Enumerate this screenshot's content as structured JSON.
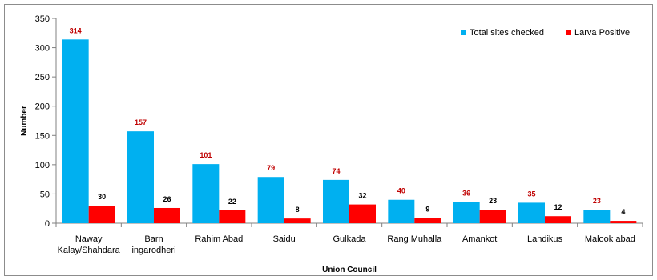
{
  "chart_data": {
    "type": "bar",
    "title": "",
    "xlabel": "Union Council",
    "ylabel": "Number",
    "ylim": [
      0,
      350
    ],
    "yticks": [
      0,
      50,
      100,
      150,
      200,
      250,
      300,
      350
    ],
    "grid": false,
    "legend_position": "top-right",
    "categories": [
      [
        "Naway",
        "Kalay/Shahdara"
      ],
      [
        "Barn",
        "ingarodheri"
      ],
      [
        "Rahim Abad"
      ],
      [
        "Saidu"
      ],
      [
        "Gulkada"
      ],
      [
        "Rang Muhalla"
      ],
      [
        "Amankot"
      ],
      [
        "Landikus"
      ],
      [
        "Malook abad"
      ]
    ],
    "series": [
      {
        "name": "Total sites checked",
        "color": "#00b0f0",
        "label_color": "#c00000",
        "values": [
          314,
          157,
          101,
          79,
          74,
          40,
          36,
          35,
          23
        ]
      },
      {
        "name": "Larva Positive",
        "color": "#ff0000",
        "label_color": "#000000",
        "values": [
          30,
          26,
          22,
          8,
          32,
          9,
          23,
          12,
          4
        ]
      }
    ]
  }
}
